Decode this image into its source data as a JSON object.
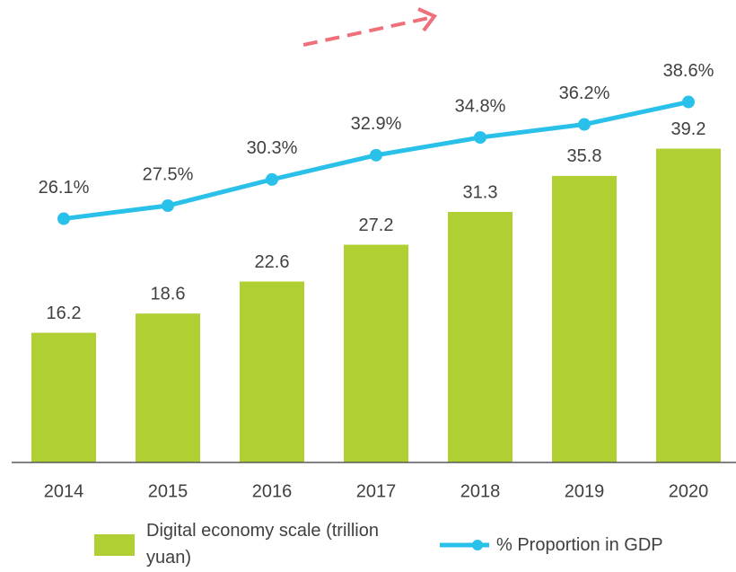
{
  "chart_data": {
    "type": "bar",
    "categories": [
      "2014",
      "2015",
      "2016",
      "2017",
      "2018",
      "2019",
      "2020"
    ],
    "series": [
      {
        "name": "Digital economy scale (trillion yuan)",
        "type": "bar",
        "color": "#afcf32",
        "values": [
          16.2,
          18.6,
          22.6,
          27.2,
          31.3,
          35.8,
          39.2
        ]
      },
      {
        "name": "% Proportion in GDP",
        "type": "line",
        "axis": "y2",
        "color": "#29c0ea",
        "values": [
          26.1,
          27.5,
          30.3,
          32.9,
          34.8,
          36.2,
          38.6
        ],
        "value_labels": [
          "26.1%",
          "27.5%",
          "30.3%",
          "32.9%",
          "34.8%",
          "36.2%",
          "38.6%"
        ]
      }
    ],
    "ylim": [
      0,
      52.5
    ],
    "y2lim": [
      0,
      45
    ],
    "legend": "bottom"
  }
}
